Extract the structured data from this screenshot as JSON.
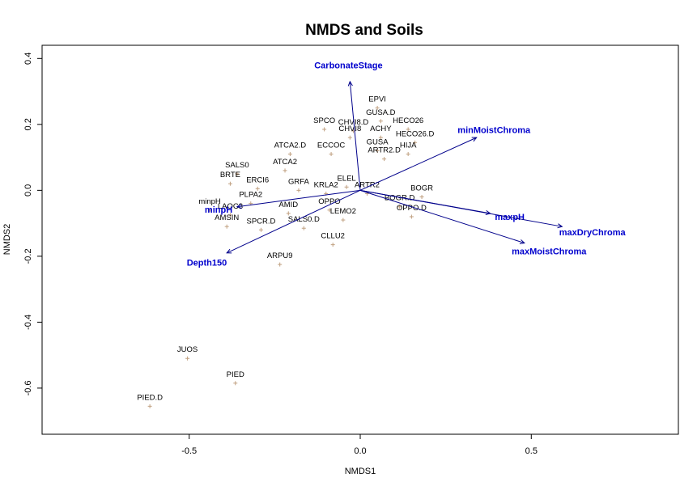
{
  "chart_data": {
    "type": "scatter",
    "title": "NMDS and Soils",
    "xlabel": "NMDS1",
    "ylabel": "NMDS2",
    "xlim": [
      -0.93,
      0.93
    ],
    "ylim": [
      -0.74,
      0.44
    ],
    "xticks": [
      -0.5,
      0.0,
      0.5
    ],
    "xtick_labels": [
      "-0.5",
      "0.0",
      "0.5"
    ],
    "yticks": [
      -0.6,
      -0.4,
      -0.2,
      0.0,
      0.2,
      0.4
    ],
    "ytick_labels": [
      "-0.6",
      "-0.4",
      "-0.2",
      "0.0",
      "0.2",
      "0.4"
    ],
    "grid": false,
    "colors": {
      "points": "#c0a080",
      "sites": "#000000",
      "vectors": "#00008b",
      "vector_labels": "#0000cd"
    },
    "sites": [
      {
        "label": "EPVI",
        "x": 0.05,
        "y": 0.25
      },
      {
        "label": "GUSA.D",
        "x": 0.06,
        "y": 0.21
      },
      {
        "label": "HECO26",
        "x": 0.14,
        "y": 0.185
      },
      {
        "label": "CHVI8.D",
        "x": -0.02,
        "y": 0.18
      },
      {
        "label": "SPCO",
        "x": -0.105,
        "y": 0.185
      },
      {
        "label": "CHVI8",
        "x": -0.03,
        "y": 0.16
      },
      {
        "label": "ACHY",
        "x": 0.06,
        "y": 0.16
      },
      {
        "label": "HECO26.D",
        "x": 0.16,
        "y": 0.145
      },
      {
        "label": "GUSA",
        "x": 0.05,
        "y": 0.12
      },
      {
        "label": "HIJA",
        "x": 0.14,
        "y": 0.11
      },
      {
        "label": "ARTR2.D",
        "x": 0.07,
        "y": 0.095
      },
      {
        "label": "ATCA2.D",
        "x": -0.205,
        "y": 0.11
      },
      {
        "label": "ECCOC",
        "x": -0.085,
        "y": 0.11
      },
      {
        "label": "ATCA2",
        "x": -0.22,
        "y": 0.06
      },
      {
        "label": "SALS0",
        "x": -0.36,
        "y": 0.05
      },
      {
        "label": "BRTE",
        "x": -0.38,
        "y": 0.02
      },
      {
        "label": "ERCI6",
        "x": -0.3,
        "y": 0.005
      },
      {
        "label": "GRFA",
        "x": -0.18,
        "y": 0.0
      },
      {
        "label": "ELEL",
        "x": -0.04,
        "y": 0.01
      },
      {
        "label": "KRLA2",
        "x": -0.1,
        "y": -0.01
      },
      {
        "label": "ARTR2",
        "x": 0.02,
        "y": -0.01
      },
      {
        "label": "BOGR",
        "x": 0.18,
        "y": -0.02
      },
      {
        "label": "PLPA2",
        "x": -0.32,
        "y": -0.04
      },
      {
        "label": "BOGR.D",
        "x": 0.115,
        "y": -0.05
      },
      {
        "label": "minpH",
        "x": -0.44,
        "y": -0.06
      },
      {
        "label": "LAOC3",
        "x": -0.38,
        "y": -0.075
      },
      {
        "label": "AMID",
        "x": -0.21,
        "y": -0.07
      },
      {
        "label": "OPPO",
        "x": -0.09,
        "y": -0.06
      },
      {
        "label": "OPPO.D",
        "x": 0.15,
        "y": -0.08
      },
      {
        "label": "LEMO2",
        "x": -0.05,
        "y": -0.09
      },
      {
        "label": "AMSIN",
        "x": -0.39,
        "y": -0.11
      },
      {
        "label": "SPCR.D",
        "x": -0.29,
        "y": -0.12
      },
      {
        "label": "SALS0.D",
        "x": -0.165,
        "y": -0.115
      },
      {
        "label": "CLLU2",
        "x": -0.08,
        "y": -0.165
      },
      {
        "label": "ARPU9",
        "x": -0.235,
        "y": -0.225
      },
      {
        "label": "JUOS",
        "x": -0.505,
        "y": -0.51
      },
      {
        "label": "PIED",
        "x": -0.365,
        "y": -0.585
      },
      {
        "label": "PIED.D",
        "x": -0.615,
        "y": -0.655
      }
    ],
    "vectors": [
      {
        "name": "CarbonateStage",
        "x": -0.03,
        "y": 0.33
      },
      {
        "name": "minMoistChroma",
        "x": 0.34,
        "y": 0.16
      },
      {
        "name": "maxpH",
        "x": 0.38,
        "y": -0.07
      },
      {
        "name": "maxDryChroma",
        "x": 0.59,
        "y": -0.11
      },
      {
        "name": "maxMoistChroma",
        "x": 0.48,
        "y": -0.16
      },
      {
        "name": "minpH",
        "x": -0.36,
        "y": -0.05
      },
      {
        "name": "Depth150",
        "x": -0.39,
        "y": -0.19
      }
    ]
  }
}
